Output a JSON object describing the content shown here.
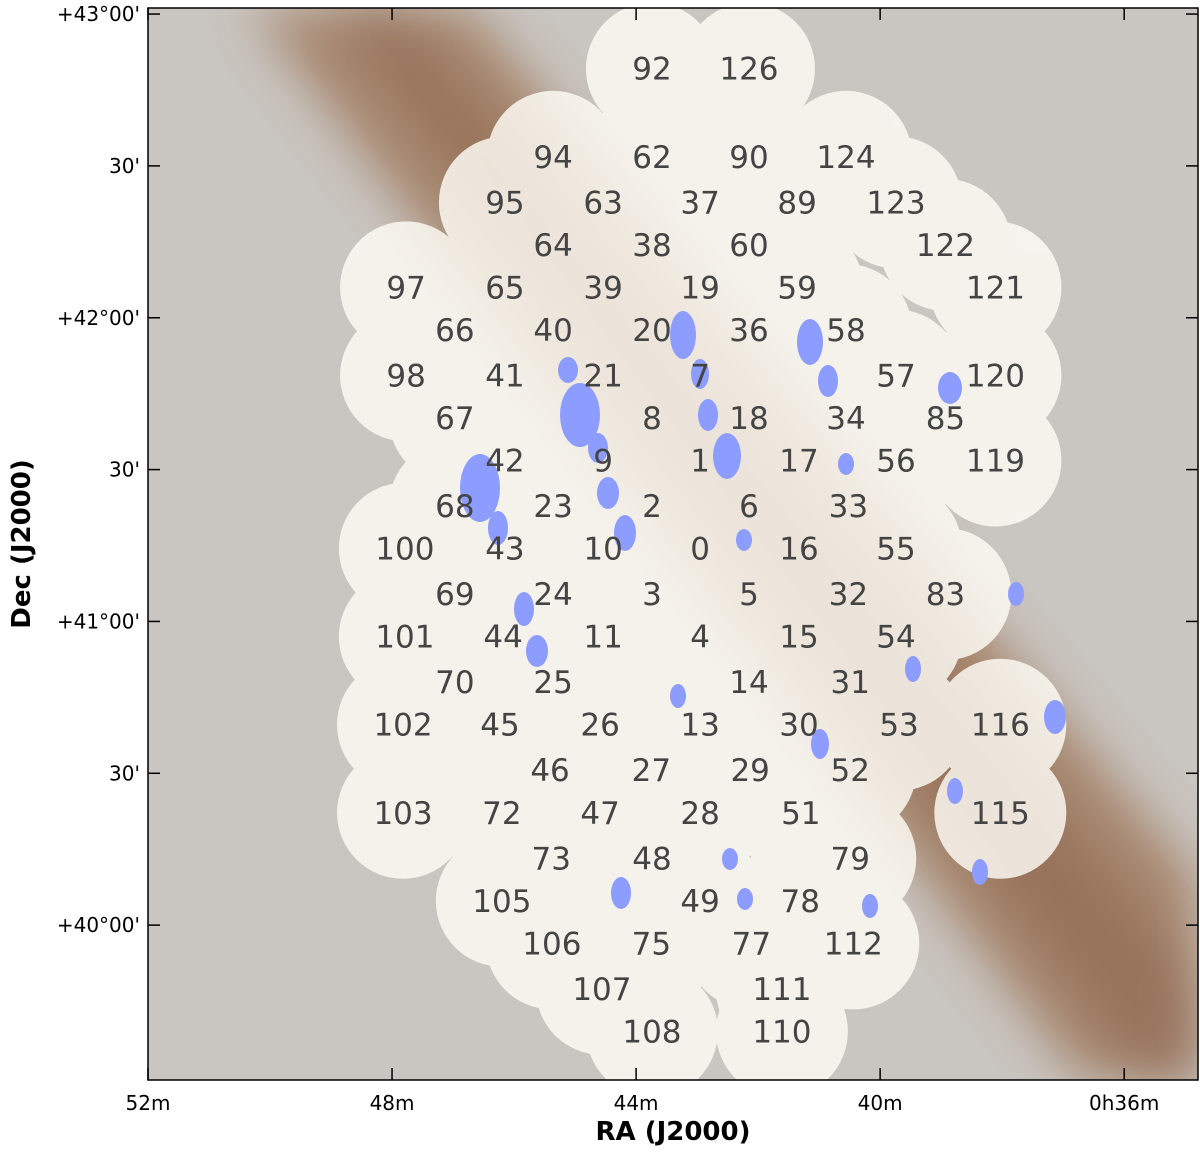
{
  "chart_data": {
    "type": "scatter",
    "xlabel": "RA (J2000)",
    "ylabel": "Dec (J2000)",
    "xlim": [
      52,
      34.79
    ],
    "ylim": [
      39.49,
      43.02
    ],
    "xticks": [
      {
        "value": 52,
        "label": "52m"
      },
      {
        "value": 48,
        "label": "48m"
      },
      {
        "value": 44,
        "label": "44m"
      },
      {
        "value": 40,
        "label": "40m"
      },
      {
        "value": 36,
        "label": "0h36m"
      }
    ],
    "yticks": [
      {
        "value": 43,
        "label": "+43°00'"
      },
      {
        "value": 42.5,
        "label": "30'"
      },
      {
        "value": 42,
        "label": "+42°00'"
      },
      {
        "value": 41.5,
        "label": "30'"
      },
      {
        "value": 41,
        "label": "+41°00'"
      },
      {
        "value": 40.5,
        "label": "30'"
      },
      {
        "value": 40,
        "label": "+40°00'"
      }
    ],
    "labels": [
      "92",
      "126",
      "94",
      "62",
      "90",
      "124",
      "95",
      "63",
      "37",
      "89",
      "123",
      "64",
      "38",
      "60",
      "122",
      "97",
      "65",
      "39",
      "19",
      "59",
      "121",
      "66",
      "40",
      "20",
      "36",
      "58",
      "98",
      "41",
      "21",
      "7",
      "57",
      "120",
      "67",
      "8",
      "18",
      "34",
      "85",
      "42",
      "9",
      "1",
      "17",
      "56",
      "119",
      "68",
      "23",
      "2",
      "6",
      "33",
      "100",
      "43",
      "10",
      "0",
      "16",
      "55",
      "69",
      "24",
      "3",
      "5",
      "32",
      "83",
      "101",
      "44",
      "11",
      "4",
      "15",
      "54",
      "70",
      "25",
      "14",
      "31",
      "102",
      "45",
      "26",
      "13",
      "30",
      "53",
      "116",
      "46",
      "27",
      "29",
      "52",
      "103",
      "72",
      "47",
      "28",
      "51",
      "115",
      "73",
      "48",
      "79",
      "105",
      "49",
      "78",
      "106",
      "75",
      "77",
      "112",
      "107",
      "111",
      "108",
      "110"
    ],
    "x": [
      43.74,
      42.15,
      45.36,
      43.74,
      42.15,
      40.56,
      46.15,
      44.54,
      42.95,
      41.36,
      39.74,
      45.36,
      43.74,
      42.15,
      38.93,
      47.77,
      46.15,
      44.54,
      42.95,
      41.36,
      38.11,
      46.97,
      45.36,
      43.74,
      42.15,
      40.56,
      47.77,
      46.15,
      44.54,
      42.95,
      39.74,
      38.11,
      46.97,
      43.74,
      42.15,
      40.56,
      38.93,
      46.15,
      44.54,
      42.95,
      41.33,
      39.74,
      38.11,
      46.97,
      45.36,
      43.74,
      42.15,
      40.52,
      47.79,
      46.15,
      44.54,
      42.95,
      41.33,
      39.74,
      46.97,
      45.36,
      43.74,
      42.15,
      40.52,
      38.93,
      47.79,
      46.18,
      44.54,
      42.95,
      41.33,
      39.74,
      46.97,
      45.36,
      42.15,
      40.49,
      47.82,
      46.23,
      44.59,
      42.95,
      41.33,
      39.69,
      38.03,
      45.41,
      43.75,
      42.13,
      40.49,
      47.82,
      46.2,
      44.59,
      42.95,
      41.3,
      38.03,
      45.39,
      43.74,
      40.49,
      46.2,
      42.95,
      41.31,
      45.38,
      43.75,
      42.11,
      40.44,
      44.56,
      41.61,
      43.74,
      41.61
    ],
    "y": [
      42.82,
      42.82,
      42.53,
      42.53,
      42.53,
      42.53,
      42.38,
      42.38,
      42.38,
      42.38,
      42.38,
      42.24,
      42.24,
      42.24,
      42.24,
      42.1,
      42.1,
      42.1,
      42.1,
      42.1,
      42.1,
      41.96,
      41.96,
      41.96,
      41.96,
      41.96,
      41.81,
      41.81,
      41.81,
      41.81,
      41.81,
      41.81,
      41.67,
      41.67,
      41.67,
      41.67,
      41.67,
      41.53,
      41.53,
      41.53,
      41.53,
      41.53,
      41.53,
      41.38,
      41.38,
      41.38,
      41.38,
      41.38,
      41.24,
      41.24,
      41.24,
      41.24,
      41.24,
      41.24,
      41.09,
      41.09,
      41.09,
      41.09,
      41.09,
      41.09,
      40.95,
      40.95,
      40.95,
      40.95,
      40.95,
      40.95,
      40.8,
      40.8,
      40.8,
      40.8,
      40.66,
      40.66,
      40.66,
      40.66,
      40.66,
      40.66,
      40.66,
      40.51,
      40.51,
      40.51,
      40.51,
      40.37,
      40.37,
      40.37,
      40.37,
      40.37,
      40.37,
      40.22,
      40.22,
      40.22,
      40.08,
      40.08,
      40.08,
      39.94,
      39.94,
      39.94,
      39.94,
      39.79,
      39.79,
      39.65,
      39.65
    ]
  }
}
